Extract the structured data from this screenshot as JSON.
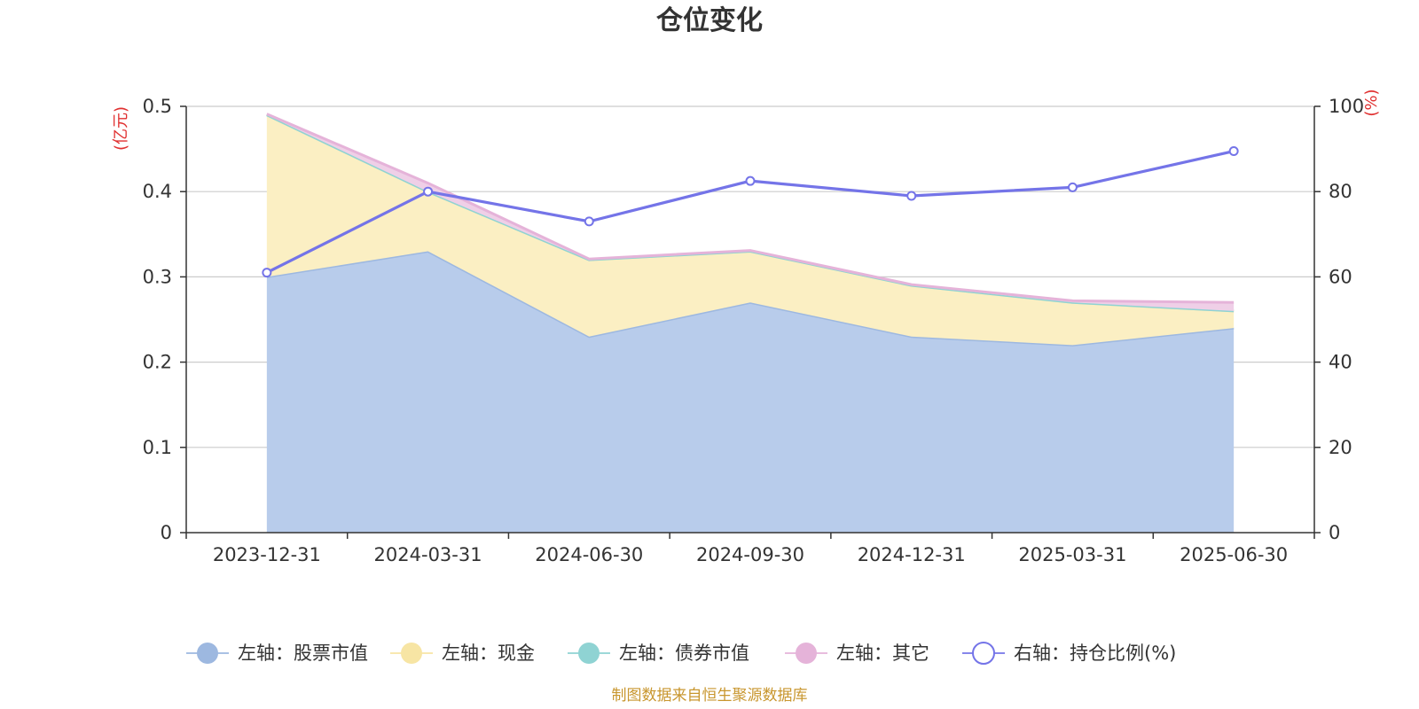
{
  "chart_data": {
    "type": "area",
    "title": "仓位变化",
    "categories": [
      "2023-12-31",
      "2024-03-31",
      "2024-06-30",
      "2024-09-30",
      "2024-12-31",
      "2025-03-31",
      "2025-06-30"
    ],
    "left_axis": {
      "unit_label": "(亿元)",
      "ylim": [
        0,
        0.5
      ],
      "ticks": [
        "0",
        "0.1",
        "0.2",
        "0.3",
        "0.4",
        "0.5"
      ]
    },
    "right_axis": {
      "unit_label": "(%)",
      "ylim": [
        0,
        100
      ],
      "ticks": [
        "0",
        "20",
        "40",
        "60",
        "80",
        "100"
      ]
    },
    "stacked": true,
    "series": [
      {
        "name": "左轴：股票市值",
        "axis": "left",
        "kind": "area",
        "color": "#9db8e0",
        "fill": "#b8cceb",
        "values": [
          0.3,
          0.33,
          0.23,
          0.27,
          0.23,
          0.22,
          0.24
        ]
      },
      {
        "name": "左轴：现金",
        "axis": "left",
        "kind": "area",
        "color": "#f7e5a4",
        "fill": "#fbefc3",
        "values": [
          0.19,
          0.07,
          0.09,
          0.06,
          0.06,
          0.05,
          0.02
        ]
      },
      {
        "name": "左轴：债券市值",
        "axis": "left",
        "kind": "area",
        "color": "#8fd3d3",
        "fill": "#bde6e6",
        "values": [
          0,
          0,
          0,
          0,
          0,
          0,
          0
        ]
      },
      {
        "name": "左轴：其它",
        "axis": "left",
        "kind": "area",
        "color": "#e5b3d9",
        "fill": "#efcfe7",
        "values": [
          0.001,
          0.01,
          0.001,
          0.001,
          0.001,
          0.002,
          0.01
        ]
      },
      {
        "name": "右轴：持仓比例(%)",
        "axis": "right",
        "kind": "line",
        "color": "#7474e8",
        "values": [
          61,
          80,
          73,
          82.5,
          79,
          81,
          89.5
        ]
      }
    ],
    "grid": true,
    "legend_position": "bottom"
  },
  "source_note": "制图数据来自恒生聚源数据库",
  "colors": {
    "axis_unit": "#e03030",
    "source_note": "#c8962e",
    "grid": "#cccccc",
    "axis": "#333333"
  }
}
